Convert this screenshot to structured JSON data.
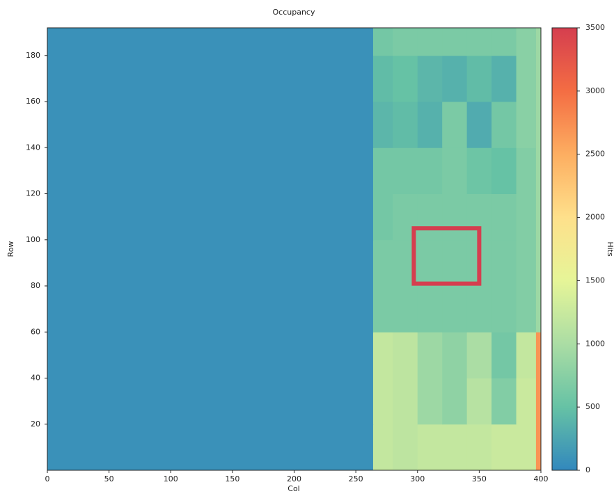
{
  "chart_data": {
    "type": "heatmap",
    "title": "Occupancy",
    "xlabel": "Col",
    "ylabel": "Row",
    "colorbar_label": "Hits",
    "xbins": [
      0,
      264,
      280,
      300,
      320,
      340,
      360,
      380,
      396,
      400
    ],
    "ybins": [
      0,
      20,
      40,
      60,
      80,
      100,
      120,
      140,
      160,
      180,
      192
    ],
    "z": [
      [
        80,
        1200,
        1150,
        1200,
        1200,
        1200,
        1250,
        1250,
        2700
      ],
      [
        80,
        1200,
        1150,
        900,
        800,
        1100,
        700,
        1250,
        2700
      ],
      [
        80,
        1200,
        1150,
        900,
        800,
        1000,
        600,
        1200,
        2700
      ],
      [
        80,
        650,
        650,
        650,
        650,
        650,
        650,
        700,
        900
      ],
      [
        80,
        650,
        650,
        650,
        650,
        650,
        650,
        700,
        900
      ],
      [
        80,
        600,
        650,
        650,
        650,
        650,
        650,
        700,
        900
      ],
      [
        80,
        600,
        600,
        600,
        650,
        550,
        500,
        700,
        900
      ],
      [
        80,
        400,
        450,
        350,
        650,
        300,
        600,
        750,
        900
      ],
      [
        80,
        450,
        500,
        400,
        350,
        450,
        350,
        750,
        900
      ],
      [
        80,
        600,
        650,
        650,
        650,
        650,
        650,
        750,
        900
      ]
    ],
    "overlays": [
      {
        "x": [
          297,
          350
        ],
        "y": [
          81,
          105
        ],
        "value": 3500
      }
    ],
    "xlim": [
      0,
      400
    ],
    "xticks": [
      0,
      50,
      100,
      150,
      200,
      250,
      300,
      350,
      400
    ],
    "ylim": [
      0,
      192
    ],
    "yticks": [
      20,
      40,
      60,
      80,
      100,
      120,
      140,
      160,
      180
    ],
    "clim": [
      0,
      3500
    ],
    "cticks": [
      0,
      500,
      1000,
      1500,
      2000,
      2500,
      3000,
      3500
    ],
    "colormap": [
      "#3288bd",
      "#66c2a5",
      "#abdda4",
      "#e6f598",
      "#fee08b",
      "#fdae61",
      "#f46d43",
      "#d53e4f"
    ]
  }
}
